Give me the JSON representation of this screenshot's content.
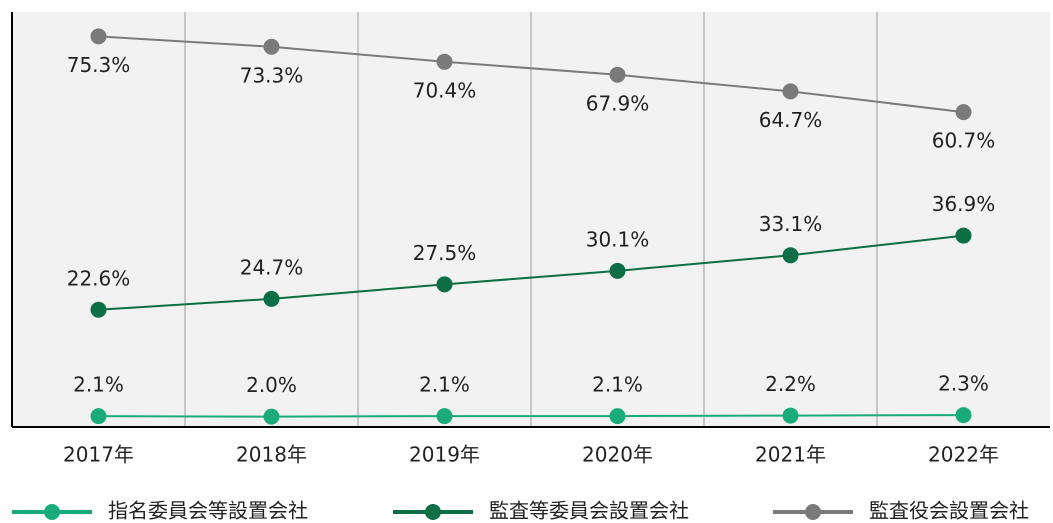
{
  "chart_data": {
    "type": "line",
    "categories": [
      "2017年",
      "2018年",
      "2019年",
      "2020年",
      "2021年",
      "2022年"
    ],
    "series": [
      {
        "name": "指名委員会等設置会社",
        "color": "#1aab7a",
        "values": [
          2.1,
          2.0,
          2.1,
          2.1,
          2.2,
          2.3
        ],
        "value_labels": [
          "2.1%",
          "2.0%",
          "2.1%",
          "2.1%",
          "2.2%",
          "2.3%"
        ]
      },
      {
        "name": "監査等委員会設置会社",
        "color": "#0b6e45",
        "values": [
          22.6,
          24.7,
          27.5,
          30.1,
          33.1,
          36.9
        ],
        "value_labels": [
          "22.6%",
          "24.7%",
          "27.5%",
          "30.1%",
          "33.1%",
          "36.9%"
        ]
      },
      {
        "name": "監査役会設置会社",
        "color": "#7a7a7a",
        "values": [
          75.3,
          73.3,
          70.4,
          67.9,
          64.7,
          60.7
        ],
        "value_labels": [
          "75.3%",
          "73.3%",
          "70.4%",
          "67.9%",
          "64.7%",
          "60.7%"
        ]
      }
    ],
    "ylim": [
      0,
      80
    ],
    "grid": true,
    "legend": "bottom"
  }
}
